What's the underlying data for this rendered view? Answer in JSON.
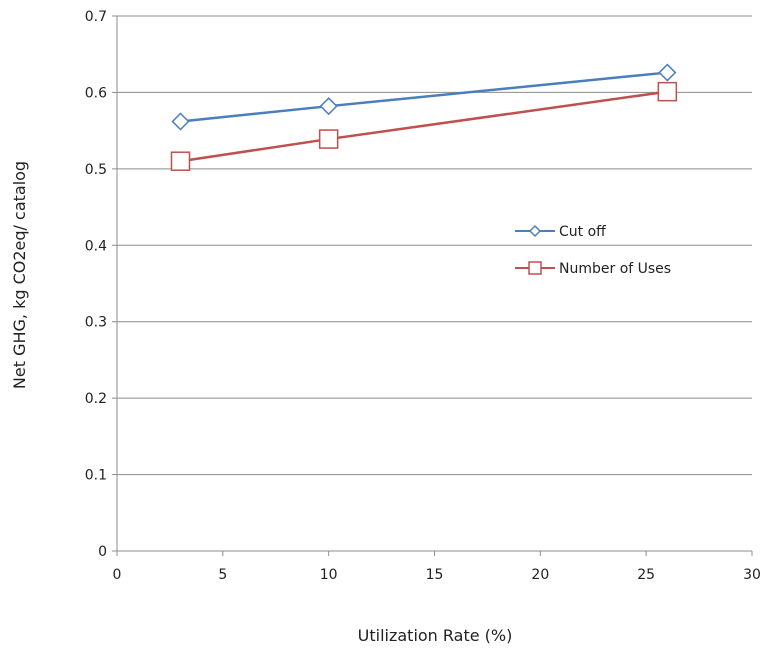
{
  "chart_data": {
    "type": "line",
    "xlabel": "Utilization Rate (%)",
    "ylabel": "Net GHG, kg CO2eq/ catalog",
    "xlim": [
      0,
      30
    ],
    "ylim": [
      0,
      0.7
    ],
    "x_ticks": [
      "0",
      "5",
      "10",
      "15",
      "20",
      "25",
      "30"
    ],
    "y_ticks": [
      "0",
      "0.1",
      "0.2",
      "0.3",
      "0.4",
      "0.5",
      "0.6",
      "0.7"
    ],
    "grid": "horizontal",
    "legend_position": "right-center",
    "series": [
      {
        "name": "Cut off",
        "color": "#4a7ebf",
        "marker": "diamond",
        "x": [
          3,
          10,
          26
        ],
        "y": [
          0.562,
          0.582,
          0.626
        ]
      },
      {
        "name": "Number of Uses",
        "color": "#c0504d",
        "marker": "square",
        "x": [
          3,
          10,
          26
        ],
        "y": [
          0.51,
          0.539,
          0.601
        ]
      }
    ]
  }
}
